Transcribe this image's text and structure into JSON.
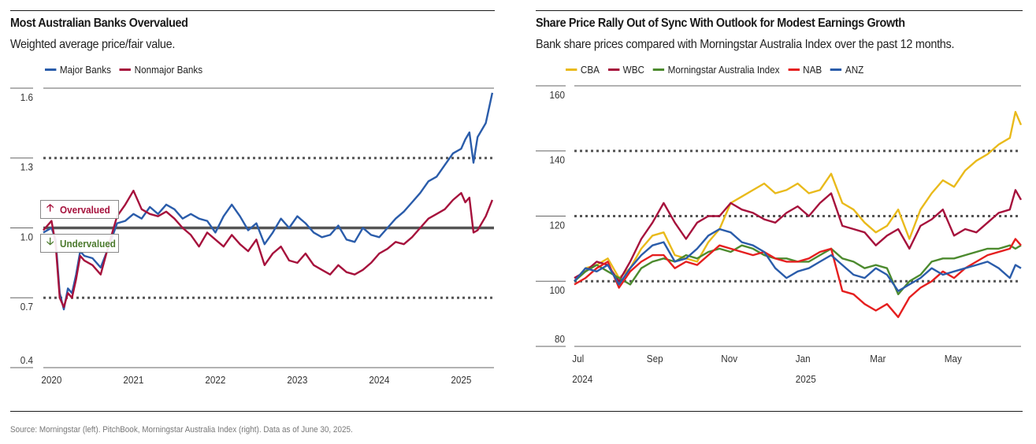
{
  "footer": {
    "source": "Source: Morningstar (left). PitchBook, Morningstar Australia Index (right). Data as of June 30, 2025."
  },
  "chart_data": [
    {
      "type": "line",
      "title": "Most Australian Banks Overvalued",
      "subtitle": "Weighted average price/fair value.",
      "xlabel": "",
      "ylabel": "",
      "ylim": [
        0.4,
        1.6
      ],
      "xlim": [
        2019.9,
        2025.4
      ],
      "yticks": [
        {
          "value": 1.6,
          "label": "1.6"
        },
        {
          "value": 1.3,
          "label": "1.3"
        },
        {
          "value": 1.0,
          "label": "1.0"
        },
        {
          "value": 0.7,
          "label": "0.7"
        },
        {
          "value": 0.4,
          "label": "0.4"
        }
      ],
      "xticks": [
        {
          "value": 2020,
          "label": "2020"
        },
        {
          "value": 2021,
          "label": "2021"
        },
        {
          "value": 2022,
          "label": "2022"
        },
        {
          "value": 2023,
          "label": "2023"
        },
        {
          "value": 2024,
          "label": "2024"
        },
        {
          "value": 2025,
          "label": "2025"
        }
      ],
      "reference_lines": [
        {
          "value": 1.3,
          "style": "dotted"
        },
        {
          "value": 1.0,
          "style": "solid"
        },
        {
          "value": 0.7,
          "style": "dotted"
        }
      ],
      "annotations": [
        {
          "text": "Overvalued",
          "icon": "arrow-up-icon",
          "color": "#A6113C"
        },
        {
          "text": "Undervalued",
          "icon": "arrow-down-icon",
          "color": "#4C7A2E"
        }
      ],
      "legend": {
        "position": "top-left"
      },
      "series": [
        {
          "name": "Major Banks",
          "color": "#2A5CAA",
          "x": [
            2019.9,
            2020.0,
            2020.05,
            2020.1,
            2020.15,
            2020.2,
            2020.25,
            2020.3,
            2020.35,
            2020.4,
            2020.5,
            2020.6,
            2020.7,
            2020.8,
            2020.9,
            2021.0,
            2021.1,
            2021.2,
            2021.3,
            2021.4,
            2021.5,
            2021.6,
            2021.7,
            2021.8,
            2021.9,
            2022.0,
            2022.1,
            2022.2,
            2022.3,
            2022.4,
            2022.5,
            2022.6,
            2022.7,
            2022.8,
            2022.9,
            2023.0,
            2023.1,
            2023.2,
            2023.3,
            2023.4,
            2023.5,
            2023.6,
            2023.7,
            2023.8,
            2023.9,
            2024.0,
            2024.1,
            2024.2,
            2024.3,
            2024.4,
            2024.5,
            2024.6,
            2024.7,
            2024.8,
            2024.9,
            2025.0,
            2025.05,
            2025.1,
            2025.15,
            2025.2,
            2025.3,
            2025.38
          ],
          "values": [
            0.98,
            1.0,
            0.95,
            0.72,
            0.65,
            0.74,
            0.72,
            0.8,
            0.9,
            0.88,
            0.87,
            0.83,
            0.92,
            1.02,
            1.03,
            1.06,
            1.04,
            1.09,
            1.06,
            1.1,
            1.08,
            1.04,
            1.06,
            1.04,
            1.03,
            0.98,
            1.05,
            1.1,
            1.05,
            0.99,
            1.02,
            0.93,
            0.98,
            1.04,
            1.0,
            1.05,
            1.02,
            0.98,
            0.96,
            0.97,
            1.01,
            0.95,
            0.94,
            1.0,
            0.97,
            0.96,
            1.0,
            1.04,
            1.07,
            1.11,
            1.15,
            1.2,
            1.22,
            1.27,
            1.32,
            1.34,
            1.38,
            1.41,
            1.28,
            1.39,
            1.45,
            1.58
          ]
        },
        {
          "name": "Nonmajor Banks",
          "color": "#A6113C",
          "x": [
            2019.9,
            2020.0,
            2020.05,
            2020.1,
            2020.15,
            2020.2,
            2020.25,
            2020.3,
            2020.35,
            2020.4,
            2020.5,
            2020.6,
            2020.7,
            2020.8,
            2020.9,
            2021.0,
            2021.1,
            2021.2,
            2021.3,
            2021.4,
            2021.5,
            2021.6,
            2021.7,
            2021.8,
            2021.9,
            2022.0,
            2022.1,
            2022.2,
            2022.3,
            2022.4,
            2022.5,
            2022.6,
            2022.7,
            2022.8,
            2022.9,
            2023.0,
            2023.1,
            2023.2,
            2023.3,
            2023.4,
            2023.5,
            2023.6,
            2023.7,
            2023.8,
            2023.9,
            2024.0,
            2024.1,
            2024.2,
            2024.3,
            2024.4,
            2024.5,
            2024.6,
            2024.7,
            2024.8,
            2024.9,
            2025.0,
            2025.05,
            2025.1,
            2025.15,
            2025.2,
            2025.3,
            2025.38
          ],
          "values": [
            0.99,
            1.03,
            0.93,
            0.7,
            0.66,
            0.72,
            0.7,
            0.78,
            0.88,
            0.86,
            0.84,
            0.8,
            0.93,
            1.05,
            1.1,
            1.16,
            1.08,
            1.06,
            1.05,
            1.07,
            1.04,
            1.0,
            0.97,
            0.92,
            0.98,
            0.95,
            0.92,
            0.97,
            0.93,
            0.9,
            0.95,
            0.84,
            0.89,
            0.92,
            0.86,
            0.85,
            0.89,
            0.84,
            0.82,
            0.8,
            0.84,
            0.81,
            0.8,
            0.82,
            0.85,
            0.89,
            0.91,
            0.94,
            0.93,
            0.96,
            1.0,
            1.04,
            1.06,
            1.08,
            1.12,
            1.15,
            1.11,
            1.13,
            0.98,
            0.99,
            1.05,
            1.12
          ]
        }
      ]
    },
    {
      "type": "line",
      "title": "Share Price Rally Out of Sync With Outlook for Modest Earnings Growth",
      "subtitle": "Bank share prices compared with Morningstar Australia Index over the past 12 months.",
      "xlabel": "",
      "ylabel": "",
      "ylim": [
        80,
        160
      ],
      "xlim": [
        0,
        12
      ],
      "yticks": [
        {
          "value": 160,
          "label": "160"
        },
        {
          "value": 140,
          "label": "140"
        },
        {
          "value": 120,
          "label": "120"
        },
        {
          "value": 100,
          "label": "100"
        },
        {
          "value": 80,
          "label": "80"
        }
      ],
      "xticks": [
        {
          "value": 0,
          "label": "Jul",
          "sublabel": "2024"
        },
        {
          "value": 2,
          "label": "Sep",
          "sublabel": ""
        },
        {
          "value": 4,
          "label": "Nov",
          "sublabel": ""
        },
        {
          "value": 6,
          "label": "Jan",
          "sublabel": "2025"
        },
        {
          "value": 8,
          "label": "Mar",
          "sublabel": ""
        },
        {
          "value": 10,
          "label": "May",
          "sublabel": ""
        }
      ],
      "reference_lines": [
        {
          "value": 140,
          "style": "dotted"
        },
        {
          "value": 120,
          "style": "dotted"
        },
        {
          "value": 100,
          "style": "dotted"
        }
      ],
      "legend": {
        "position": "top-left"
      },
      "series": [
        {
          "name": "CBA",
          "color": "#E9BA1B",
          "x": [
            0,
            0.3,
            0.6,
            0.9,
            1.2,
            1.5,
            1.8,
            2.1,
            2.4,
            2.7,
            3.0,
            3.3,
            3.6,
            3.9,
            4.2,
            4.5,
            4.8,
            5.1,
            5.4,
            5.7,
            6.0,
            6.3,
            6.6,
            6.9,
            7.2,
            7.5,
            7.8,
            8.1,
            8.4,
            8.7,
            9.0,
            9.3,
            9.6,
            9.9,
            10.2,
            10.5,
            10.8,
            11.1,
            11.4,
            11.7,
            11.85,
            12.0
          ],
          "values": [
            100,
            104,
            105,
            107,
            101,
            104,
            110,
            114,
            115,
            108,
            107,
            106,
            112,
            116,
            124,
            126,
            128,
            130,
            127,
            128,
            130,
            127,
            128,
            133,
            124,
            122,
            118,
            115,
            117,
            122,
            113,
            122,
            127,
            131,
            129,
            134,
            137,
            139,
            142,
            144,
            152,
            148
          ]
        },
        {
          "name": "WBC",
          "color": "#A6113C",
          "x": [
            0,
            0.3,
            0.6,
            0.9,
            1.2,
            1.5,
            1.8,
            2.1,
            2.4,
            2.7,
            3.0,
            3.3,
            3.6,
            3.9,
            4.2,
            4.5,
            4.8,
            5.1,
            5.4,
            5.7,
            6.0,
            6.3,
            6.6,
            6.9,
            7.2,
            7.5,
            7.8,
            8.1,
            8.4,
            8.7,
            9.0,
            9.3,
            9.6,
            9.9,
            10.2,
            10.5,
            10.8,
            11.1,
            11.4,
            11.7,
            11.85,
            12.0
          ],
          "values": [
            101,
            103,
            106,
            105,
            100,
            106,
            113,
            118,
            124,
            118,
            113,
            118,
            120,
            120,
            124,
            122,
            121,
            119,
            118,
            121,
            123,
            120,
            124,
            127,
            117,
            116,
            115,
            111,
            114,
            116,
            110,
            117,
            119,
            122,
            114,
            116,
            115,
            118,
            121,
            122,
            128,
            125
          ]
        },
        {
          "name": "Morningstar Australia Index",
          "color": "#4C8A2E",
          "x": [
            0,
            0.3,
            0.6,
            0.9,
            1.2,
            1.5,
            1.8,
            2.1,
            2.4,
            2.7,
            3.0,
            3.3,
            3.6,
            3.9,
            4.2,
            4.5,
            4.8,
            5.1,
            5.4,
            5.7,
            6.0,
            6.3,
            6.6,
            6.9,
            7.2,
            7.5,
            7.8,
            8.1,
            8.4,
            8.7,
            9.0,
            9.3,
            9.6,
            9.9,
            10.2,
            10.5,
            10.8,
            11.1,
            11.4,
            11.7,
            11.85,
            12.0
          ],
          "values": [
            100,
            103,
            105,
            103,
            101,
            99,
            104,
            106,
            107,
            106,
            108,
            107,
            109,
            110,
            109,
            111,
            110,
            108,
            107,
            107,
            106,
            106,
            108,
            110,
            107,
            106,
            104,
            105,
            104,
            96,
            100,
            102,
            106,
            107,
            107,
            108,
            109,
            110,
            110,
            111,
            110,
            111
          ]
        },
        {
          "name": "NAB",
          "color": "#E51F1F",
          "x": [
            0,
            0.3,
            0.6,
            0.9,
            1.2,
            1.5,
            1.8,
            2.1,
            2.4,
            2.7,
            3.0,
            3.3,
            3.6,
            3.9,
            4.2,
            4.5,
            4.8,
            5.1,
            5.4,
            5.7,
            6.0,
            6.3,
            6.6,
            6.9,
            7.2,
            7.5,
            7.8,
            8.1,
            8.4,
            8.7,
            9.0,
            9.3,
            9.6,
            9.9,
            10.2,
            10.5,
            10.8,
            11.1,
            11.4,
            11.7,
            11.85,
            12.0
          ],
          "values": [
            99,
            101,
            104,
            106,
            98,
            103,
            106,
            108,
            108,
            104,
            106,
            105,
            108,
            111,
            110,
            109,
            108,
            109,
            107,
            106,
            106,
            107,
            109,
            110,
            97,
            96,
            93,
            91,
            93,
            89,
            95,
            98,
            100,
            103,
            101,
            104,
            106,
            108,
            109,
            110,
            113,
            111
          ]
        },
        {
          "name": "ANZ",
          "color": "#2A5CAA",
          "x": [
            0,
            0.3,
            0.6,
            0.9,
            1.2,
            1.5,
            1.8,
            2.1,
            2.4,
            2.7,
            3.0,
            3.3,
            3.6,
            3.9,
            4.2,
            4.5,
            4.8,
            5.1,
            5.4,
            5.7,
            6.0,
            6.3,
            6.6,
            6.9,
            7.2,
            7.5,
            7.8,
            8.1,
            8.4,
            8.7,
            9.0,
            9.3,
            9.6,
            9.9,
            10.2,
            10.5,
            10.8,
            11.1,
            11.4,
            11.7,
            11.85,
            12.0
          ],
          "values": [
            100,
            104,
            103,
            105,
            99,
            104,
            108,
            111,
            112,
            106,
            107,
            110,
            114,
            116,
            115,
            112,
            111,
            109,
            104,
            101,
            103,
            104,
            106,
            108,
            105,
            102,
            101,
            104,
            102,
            97,
            99,
            101,
            104,
            102,
            103,
            104,
            105,
            106,
            104,
            101,
            105,
            104
          ]
        }
      ]
    }
  ]
}
